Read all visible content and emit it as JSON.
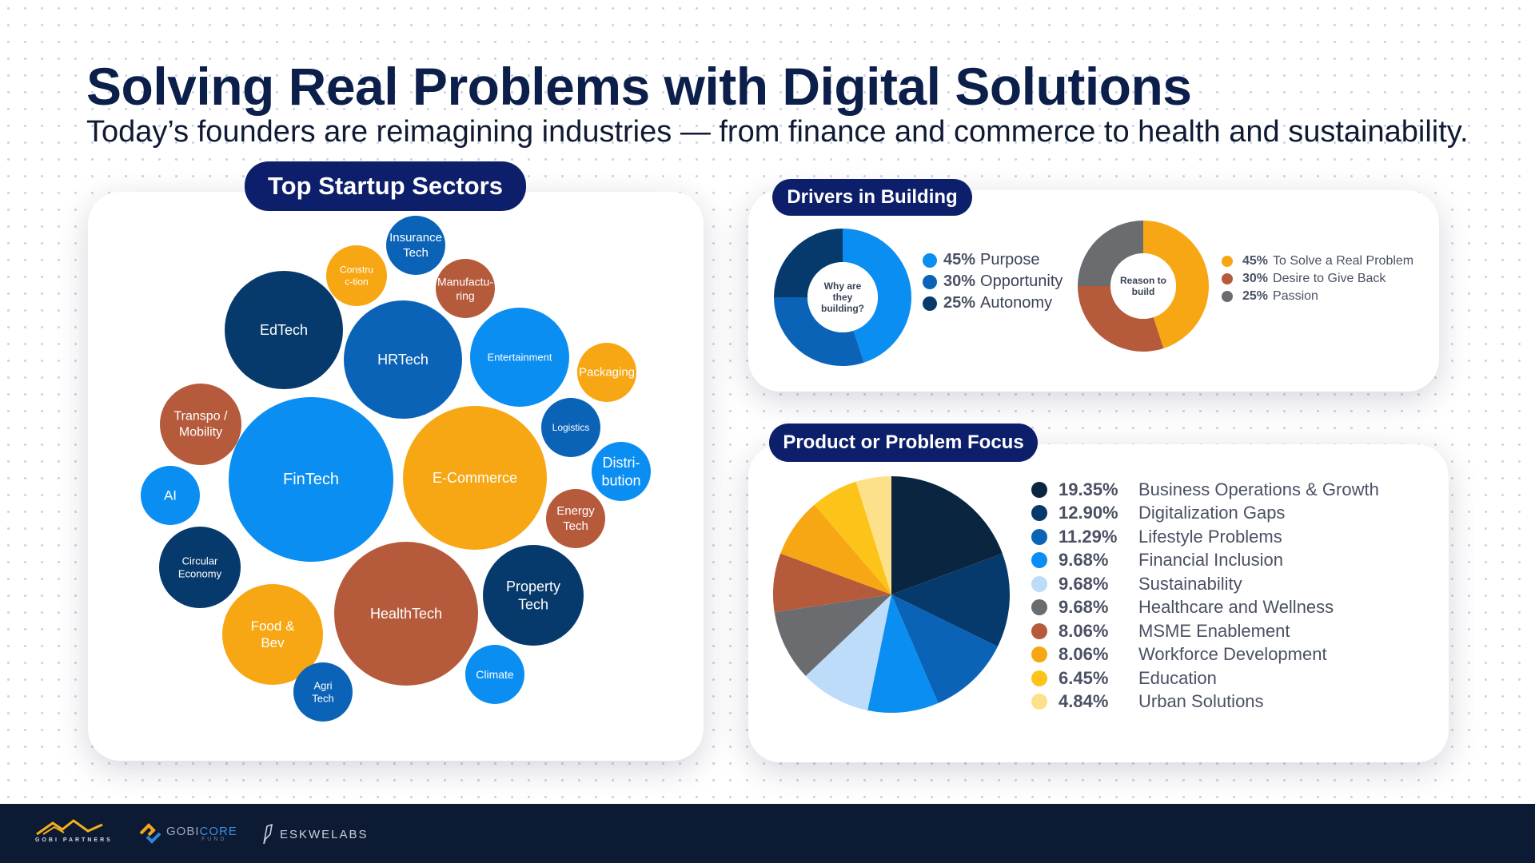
{
  "header": {
    "title": "Solving Real Problems with Digital Solutions",
    "subtitle": "Today’s founders are reimagining industries — from finance and commerce to health and sustainability."
  },
  "sectors": {
    "pill": "Top Startup Sectors",
    "bubbles": [
      {
        "label": "Insurance Tech",
        "lines": [
          "Insurance",
          "Tech"
        ],
        "color": "#0b63b8"
      },
      {
        "label": "Construction",
        "lines": [
          "Constru",
          "c-tion"
        ],
        "color": "#f7a713"
      },
      {
        "label": "Manufacturing",
        "lines": [
          "Manufactu-",
          "ring"
        ],
        "color": "#b65a3c"
      },
      {
        "label": "EdTech",
        "lines": [
          "EdTech"
        ],
        "color": "#073a6c"
      },
      {
        "label": "HRTech",
        "lines": [
          "HRTech"
        ],
        "color": "#0b63b8"
      },
      {
        "label": "Entertainment",
        "lines": [
          "Entertainment"
        ],
        "color": "#0b8ef2"
      },
      {
        "label": "Packaging",
        "lines": [
          "Packaging"
        ],
        "color": "#f7a713"
      },
      {
        "label": "Transpo / Mobility",
        "lines": [
          "Transpo /",
          "Mobility"
        ],
        "color": "#b65a3c"
      },
      {
        "label": "Logistics",
        "lines": [
          "Logistics"
        ],
        "color": "#0b63b8"
      },
      {
        "label": "FinTech",
        "lines": [
          "FinTech"
        ],
        "color": "#0b8ef2"
      },
      {
        "label": "E-Commerce",
        "lines": [
          "E-Commerce"
        ],
        "color": "#f7a713"
      },
      {
        "label": "Distribution",
        "lines": [
          "Distri-",
          "bution"
        ],
        "color": "#0b8ef2"
      },
      {
        "label": "AI",
        "lines": [
          "AI"
        ],
        "color": "#0b8ef2"
      },
      {
        "label": "Energy Tech",
        "lines": [
          "Energy",
          "Tech"
        ],
        "color": "#b65a3c"
      },
      {
        "label": "Circular Economy",
        "lines": [
          "Circular",
          "Economy"
        ],
        "color": "#073a6c"
      },
      {
        "label": "Property Tech",
        "lines": [
          "Property",
          "Tech"
        ],
        "color": "#073a6c"
      },
      {
        "label": "HealthTech",
        "lines": [
          "HealthTech"
        ],
        "color": "#b65a3c"
      },
      {
        "label": "Food & Bev",
        "lines": [
          "Food &",
          "Bev"
        ],
        "color": "#f7a713"
      },
      {
        "label": "Climate",
        "lines": [
          "Climate"
        ],
        "color": "#0b8ef2"
      },
      {
        "label": "Agri Tech",
        "lines": [
          "Agri",
          "Tech"
        ],
        "color": "#0b63b8"
      }
    ]
  },
  "drivers": {
    "pill": "Drivers in Building",
    "donut1_center": [
      "Why are",
      "they",
      "building?"
    ],
    "donut2_center": [
      "Reason to",
      "build"
    ]
  },
  "focus": {
    "pill": "Product or Problem Focus"
  },
  "chart_data": [
    {
      "type": "pie",
      "labels": [
        "Purpose",
        "Opportunity",
        "Autonomy"
      ],
      "values": [
        45,
        30,
        25
      ],
      "display": [
        "45%",
        "30%",
        "25%"
      ],
      "colors": [
        "#0b8ef2",
        "#0b63b8",
        "#073a6c"
      ]
    },
    {
      "type": "pie",
      "labels": [
        "To Solve a Real Problem",
        "Desire to Give Back",
        "Passion"
      ],
      "values": [
        45,
        30,
        25
      ],
      "display": [
        "45%",
        "30%",
        "25%"
      ],
      "colors": [
        "#f7a713",
        "#b65a3c",
        "#6a6c70"
      ]
    },
    {
      "type": "pie",
      "labels": [
        "Business Operations & Growth",
        "Digitalization Gaps",
        "Lifestyle Problems",
        "Financial Inclusion",
        "Sustainability",
        "Healthcare and Wellness",
        "MSME Enablement",
        "Workforce Development",
        "Education",
        "Urban Solutions"
      ],
      "values": [
        19.35,
        12.9,
        11.29,
        9.68,
        9.68,
        9.68,
        8.06,
        8.06,
        6.45,
        4.84
      ],
      "display": [
        "19.35%",
        "12.90%",
        "11.29%",
        "9.68%",
        "9.68%",
        "9.68%",
        "8.06%",
        "8.06%",
        "6.45%",
        "4.84%"
      ],
      "colors": [
        "#0a2540",
        "#073a6c",
        "#0b63b8",
        "#0b8ef2",
        "#bddcfa",
        "#6a6c70",
        "#b65a3c",
        "#f7a713",
        "#fcc419",
        "#fde18a"
      ]
    }
  ],
  "footer": {
    "logo1": "GOBI PARTNERS",
    "logo2_a": "GOBI",
    "logo2_b": "CORE",
    "logo2_c": "FUND",
    "logo3": "ESKWELABS"
  }
}
